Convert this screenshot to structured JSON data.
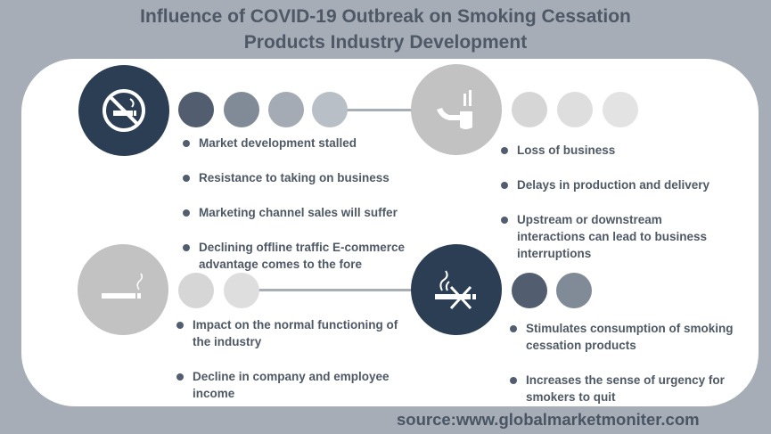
{
  "title": {
    "line1": "Influence of COVID-19 Outbreak on Smoking Cessation",
    "line2": "Products Industry Development"
  },
  "quadrants": {
    "top_left": {
      "icon": "no-smoking-icon",
      "bullets": [
        "Market development stalled",
        "Resistance to taking on business",
        "Marketing channel sales will suffer",
        "Declining offline traffic E-commerce advantage comes to the fore"
      ]
    },
    "top_right": {
      "icon": "pipe-icon",
      "bullets": [
        "Loss of business",
        "Delays in production and delivery",
        "Upstream or downstream interactions can lead to business interruptions"
      ]
    },
    "bottom_left": {
      "icon": "cigarette-icon",
      "bullets": [
        "Impact on the normal functioning of the industry",
        "Decline in company and employee income"
      ]
    },
    "bottom_right": {
      "icon": "crossed-cigarette-icon",
      "bullets": [
        "Stimulates consumption of smoking cessation products",
        "Increases the sense of urgency for smokers to quit"
      ]
    }
  },
  "source": "source:www.globalmarketmoniter.com",
  "colors": {
    "background": "#a6adb6",
    "dark_circle": "#2c3e53",
    "gray_circle": "#c2c2c2",
    "text": "#4f5966"
  }
}
